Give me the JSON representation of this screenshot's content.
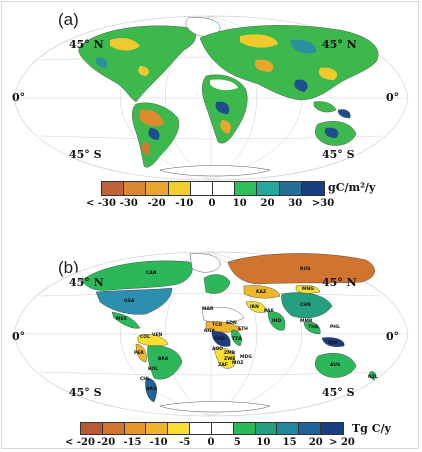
{
  "panels": [
    {
      "label": "(a)",
      "lat_labels": {
        "north": "45° N",
        "equator": "0°",
        "south": "45° S"
      },
      "colorbar": {
        "colors": [
          "#c0623a",
          "#d9882f",
          "#e9a62c",
          "#f2cf2c",
          "#ffffff",
          "#ffffff",
          "#2cc05a",
          "#25a89c",
          "#246f95",
          "#1a3f80"
        ],
        "ticks": [
          "< -30",
          "-30",
          "-20",
          "-10",
          "0",
          "10",
          "20",
          "30",
          ">30"
        ],
        "unit": "gC/m²/y"
      }
    },
    {
      "label": "(b)",
      "lat_labels": {
        "north": "45° N",
        "equator": "0°",
        "south": "45° S"
      },
      "colorbar": {
        "colors": [
          "#b85a35",
          "#d07530",
          "#e4952c",
          "#efb62c",
          "#f7de30",
          "#ffffff",
          "#ffffff",
          "#2ab85a",
          "#24a07e",
          "#22879e",
          "#1e6496",
          "#1a3f80"
        ],
        "ticks": [
          "< -20",
          "-20",
          "-15",
          "-10",
          "-5",
          "0",
          "5",
          "10",
          "15",
          "20",
          "> 20"
        ],
        "unit": "Tg C/y"
      },
      "country_labels": [
        "RUS",
        "USA",
        "CAN",
        "KAZ",
        "CHN",
        "MNG",
        "IND",
        "IDN",
        "AUS",
        "BRA",
        "ARG",
        "COL",
        "PER",
        "VEN",
        "MEX",
        "COD",
        "ZAF",
        "TZA",
        "AGO",
        "ZMB",
        "SDN",
        "TCD",
        "MAR",
        "IRN",
        "PAK",
        "MMR",
        "THA",
        "PHL",
        "NZL",
        "BOL",
        "CHL",
        "ETH",
        "NGA",
        "MDG",
        "ZWE",
        "MOZ"
      ]
    }
  ],
  "colors": {
    "ocean": "#ffffff",
    "graticule": "#c9c9c9",
    "coast": "#555555"
  }
}
